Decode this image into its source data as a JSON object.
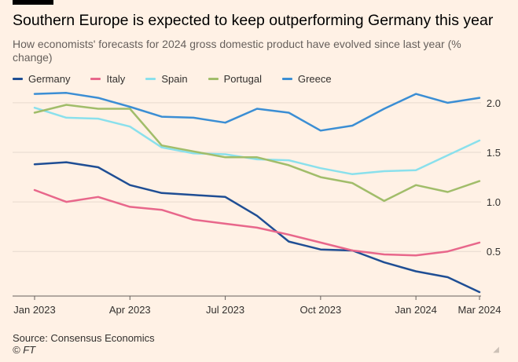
{
  "title": "Southern Europe is expected to keep outperforming Germany this year",
  "subtitle": "How economists' forecasts for 2024 gross domestic product have evolved since last year (% change)",
  "source": "Source: Consensus Economics",
  "credit": "© FT",
  "colors": {
    "background": "#fff1e5",
    "germany": "#1f4e94",
    "italy": "#e8678b",
    "spain": "#8ae0ec",
    "portugal": "#a1bd6a",
    "greece": "#3b8ed4"
  },
  "chart_data": {
    "type": "line",
    "title": "Southern Europe is expected to keep outperforming Germany this year",
    "subtitle": "How economists' forecasts for 2024 gross domestic product have evolved since last year (% change)",
    "x": [
      "Jan 2023",
      "Feb 2023",
      "Mar 2023",
      "Apr 2023",
      "May 2023",
      "Jun 2023",
      "Jul 2023",
      "Aug 2023",
      "Sep 2023",
      "Oct 2023",
      "Nov 2023",
      "Dec 2023",
      "Jan 2024",
      "Feb 2024",
      "Mar 2024"
    ],
    "x_tick_labels": [
      "Jan 2023",
      "Apr 2023",
      "Jul 2023",
      "Oct 2023",
      "Jan 2024",
      "Mar 2024"
    ],
    "x_tick_index": [
      0,
      3,
      6,
      9,
      12,
      14
    ],
    "y_ticks": [
      0.5,
      1.0,
      1.5,
      2.0
    ],
    "y_tick_labels": [
      "0.5",
      "1.0",
      "1.5",
      "2.0"
    ],
    "ylim": [
      0.05,
      2.15
    ],
    "legend_position": "top",
    "grid": "horizontal",
    "series": [
      {
        "name": "Germany",
        "color": "#1f4e94",
        "values": [
          1.38,
          1.4,
          1.35,
          1.17,
          1.09,
          1.07,
          1.05,
          0.86,
          0.6,
          0.52,
          0.51,
          0.39,
          0.3,
          0.24,
          0.09
        ]
      },
      {
        "name": "Italy",
        "color": "#e8678b",
        "values": [
          1.12,
          1.0,
          1.05,
          0.95,
          0.92,
          0.82,
          0.78,
          0.74,
          0.67,
          0.59,
          0.51,
          0.47,
          0.46,
          0.5,
          0.59
        ]
      },
      {
        "name": "Spain",
        "color": "#8ae0ec",
        "values": [
          1.95,
          1.85,
          1.84,
          1.76,
          1.55,
          1.49,
          1.48,
          1.43,
          1.42,
          1.34,
          1.28,
          1.31,
          1.32,
          1.47,
          1.62
        ]
      },
      {
        "name": "Portugal",
        "color": "#a1bd6a",
        "values": [
          1.9,
          1.98,
          1.94,
          1.94,
          1.57,
          1.51,
          1.45,
          1.45,
          1.37,
          1.25,
          1.19,
          1.01,
          1.17,
          1.1,
          1.21
        ]
      },
      {
        "name": "Greece",
        "color": "#3b8ed4",
        "values": [
          2.09,
          2.1,
          2.05,
          1.96,
          1.86,
          1.85,
          1.8,
          1.94,
          1.9,
          1.72,
          1.77,
          1.94,
          2.09,
          2.0,
          2.05
        ]
      }
    ]
  }
}
